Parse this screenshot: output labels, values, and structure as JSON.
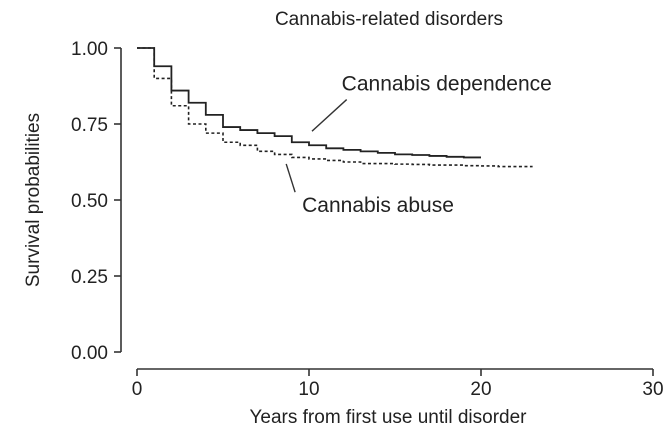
{
  "chart_data": {
    "type": "line",
    "title": "Cannabis-related disorders",
    "xlabel": "Years from first use until disorder",
    "ylabel": "Survival probabilities",
    "xlim": [
      0,
      30
    ],
    "ylim": [
      0,
      1
    ],
    "xticks": [
      0,
      10,
      20,
      30
    ],
    "xtick_labels": [
      "0",
      "10",
      "20",
      "30"
    ],
    "yticks": [
      0,
      0.25,
      0.5,
      0.75,
      1
    ],
    "ytick_labels": [
      "0.00",
      "0.25",
      "0.50",
      "0.75",
      "1.00"
    ],
    "grid": false,
    "legend": "none (inline annotations)",
    "step": true,
    "series": [
      {
        "name": "Cannabis dependence",
        "style": "solid",
        "color": "#222222",
        "x": [
          0,
          1,
          2,
          3,
          4,
          5,
          6,
          7,
          8,
          9,
          10,
          11,
          12,
          13,
          14,
          15,
          16,
          17,
          18,
          19,
          20
        ],
        "y": [
          1.0,
          0.94,
          0.86,
          0.82,
          0.78,
          0.74,
          0.73,
          0.72,
          0.71,
          0.69,
          0.68,
          0.67,
          0.665,
          0.66,
          0.655,
          0.65,
          0.648,
          0.645,
          0.642,
          0.64,
          0.64
        ]
      },
      {
        "name": "Cannabis abuse",
        "style": "dashed",
        "color": "#222222",
        "x": [
          0,
          1,
          2,
          3,
          4,
          5,
          6,
          7,
          8,
          9,
          10,
          11,
          12,
          13,
          14,
          15,
          16,
          17,
          18,
          19,
          20,
          21,
          22,
          23
        ],
        "y": [
          1.0,
          0.9,
          0.81,
          0.75,
          0.72,
          0.69,
          0.68,
          0.66,
          0.65,
          0.64,
          0.635,
          0.63,
          0.625,
          0.62,
          0.62,
          0.618,
          0.617,
          0.615,
          0.615,
          0.613,
          0.612,
          0.61,
          0.61,
          0.61
        ]
      }
    ],
    "annotations": [
      {
        "text": "Cannabis dependence",
        "series": "Cannabis dependence",
        "at_x": 10,
        "at_y": 0.7,
        "label_x": 11.9,
        "label_y": 0.86
      },
      {
        "text": "Cannabis abuse",
        "series": "Cannabis abuse",
        "at_x": 8.5,
        "at_y": 0.645,
        "label_x": 9.6,
        "label_y": 0.46
      }
    ]
  }
}
